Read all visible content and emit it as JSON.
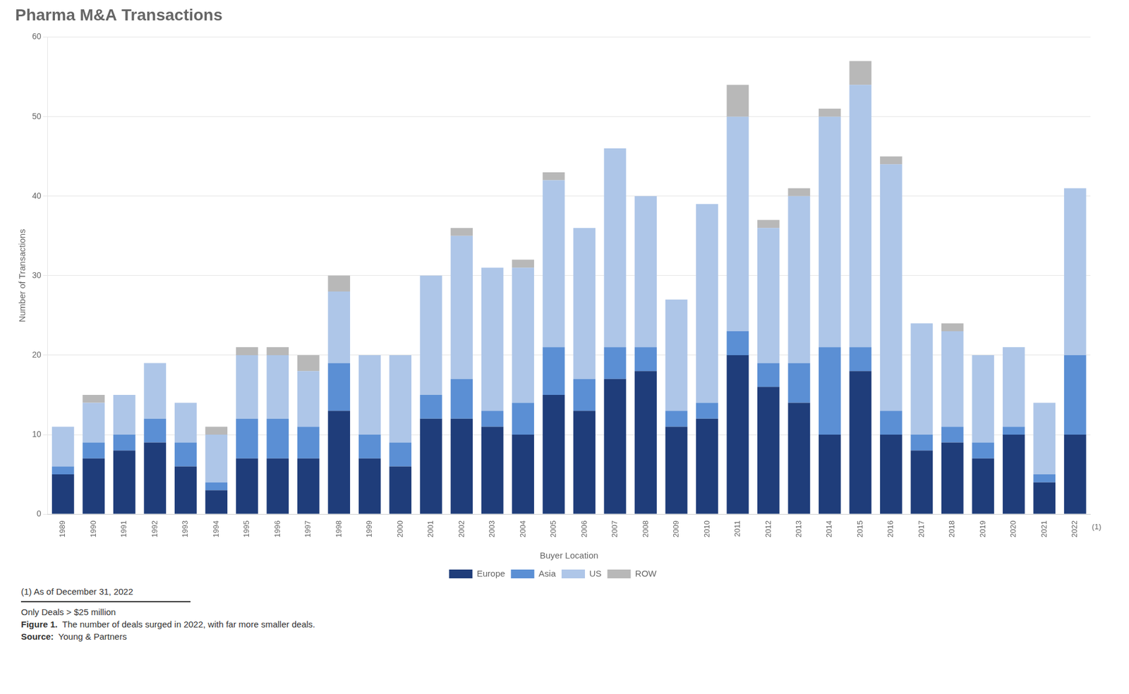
{
  "chart_data": {
    "type": "bar",
    "title": "Pharma M&A Transactions",
    "x_label": "Buyer Location",
    "y_label": "Number of Transactions",
    "categories": [
      "1989",
      "1990",
      "1991",
      "1992",
      "1993",
      "1994",
      "1995",
      "1996",
      "1997",
      "1998",
      "1999",
      "2000",
      "2001",
      "2002",
      "2003",
      "2004",
      "2005",
      "2006",
      "2007",
      "2008",
      "2009",
      "2010",
      "2011",
      "2012",
      "2013",
      "2014",
      "2015",
      "2016",
      "2017",
      "2018",
      "2019",
      "2020",
      "2021",
      "2022"
    ],
    "series": [
      {
        "name": "Europe",
        "color": "#1f3d7a",
        "values": [
          5,
          7,
          8,
          9,
          6,
          3,
          7,
          7,
          7,
          13,
          7,
          6,
          12,
          12,
          11,
          10,
          15,
          13,
          17,
          18,
          11,
          12,
          20,
          16,
          14,
          10,
          18,
          10,
          8,
          9,
          7,
          10,
          4,
          10
        ]
      },
      {
        "name": "Asia",
        "color": "#5b8fd4",
        "values": [
          1,
          2,
          2,
          3,
          3,
          1,
          5,
          5,
          4,
          6,
          3,
          3,
          3,
          5,
          2,
          4,
          6,
          4,
          4,
          3,
          2,
          2,
          3,
          3,
          5,
          11,
          3,
          3,
          2,
          2,
          2,
          1,
          1,
          10
        ]
      },
      {
        "name": "US",
        "color": "#aec6e8",
        "values": [
          5,
          5,
          5,
          7,
          5,
          6,
          8,
          8,
          7,
          9,
          10,
          11,
          15,
          18,
          18,
          17,
          21,
          19,
          25,
          19,
          14,
          25,
          27,
          17,
          21,
          29,
          33,
          31,
          14,
          12,
          11,
          10,
          9,
          21
        ]
      },
      {
        "name": "ROW",
        "color": "#b8b8b8",
        "values": [
          0,
          1,
          0,
          0,
          0,
          1,
          1,
          1,
          2,
          2,
          0,
          0,
          0,
          1,
          0,
          1,
          1,
          0,
          0,
          0,
          0,
          0,
          4,
          1,
          1,
          1,
          3,
          1,
          0,
          1,
          0,
          0,
          0,
          0
        ]
      }
    ],
    "stacked": true,
    "ylim": [
      0,
      60
    ],
    "yticks": [
      0,
      10,
      20,
      30,
      40,
      50,
      60
    ],
    "grid": true,
    "legend": "bottom",
    "annotations": [
      "(1)",
      "(1) As of December 31, 2022",
      "Only Deals > $25 million",
      [
        "Figure 1.",
        "The number of deals surged in 2022, with far more smaller deals."
      ],
      [
        "Source:",
        "Young & Partners"
      ]
    ]
  }
}
